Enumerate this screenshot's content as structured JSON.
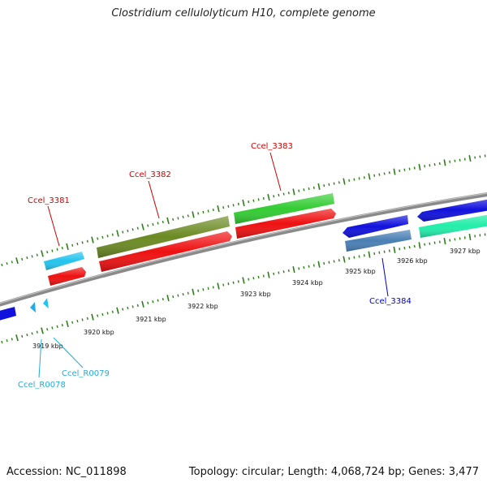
{
  "title": "Clostridium cellulolyticum H10, complete genome",
  "footer": {
    "accession": "Accession: NC_011898",
    "stats": "Topology: circular; Length: 4,068,724 bp; Genes: 3,477"
  },
  "colors": {
    "backbone": "#8a8a8a",
    "tick": "#2e7d1a",
    "gene_label_red": "#cc0000",
    "gene_label_blue": "#0000cc",
    "gene_label_cyan": "#22aadd",
    "red_cds": "#ee1111",
    "olive": "#6b8a23",
    "green": "#33cc33",
    "blue": "#1111dd",
    "steel": "#4a7fb5",
    "cyan": "#22c4ee",
    "teal": "#22eeaa"
  },
  "scale_labels": [
    "3919 kbp",
    "3920 kbp",
    "3921 kbp",
    "3922 kbp",
    "3923 kbp",
    "3924 kbp",
    "3925 kbp",
    "3926 kbp",
    "3927 kbp"
  ],
  "gene_labels": [
    {
      "id": "ccel-3381",
      "text": "Ccel_3381",
      "color": "red"
    },
    {
      "id": "ccel-3382",
      "text": "Ccel_3382",
      "color": "red"
    },
    {
      "id": "ccel-3383",
      "text": "Ccel_3383",
      "color": "red"
    },
    {
      "id": "ccel-3384",
      "text": "Ccel_3384",
      "color": "blue"
    },
    {
      "id": "ccel-r0079",
      "text": "Ccel_R0079",
      "color": "cyan"
    },
    {
      "id": "ccel-r0078",
      "text": "Ccel_R0078",
      "color": "cyan"
    }
  ]
}
